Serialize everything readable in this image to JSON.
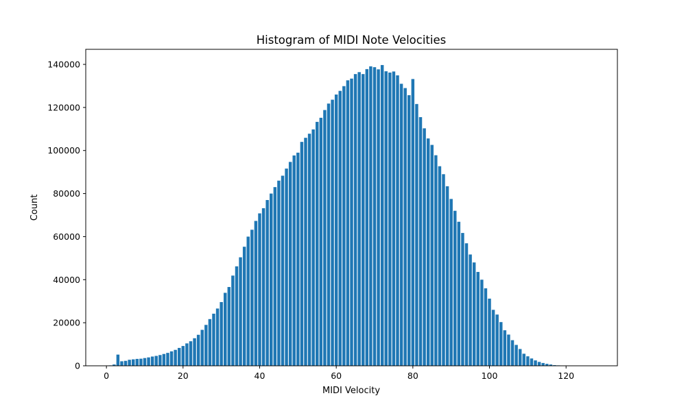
{
  "chart_data": {
    "type": "bar",
    "title": "Histogram of MIDI Note Velocities",
    "xlabel": "MIDI Velocity",
    "ylabel": "Count",
    "xlim": [
      -5.4,
      133.4
    ],
    "ylim": [
      0,
      147000
    ],
    "xticks": [
      0,
      20,
      40,
      60,
      80,
      100,
      120
    ],
    "yticks": [
      0,
      20000,
      40000,
      60000,
      80000,
      100000,
      120000,
      140000
    ],
    "bar_color": "#1f77b4",
    "grid": false,
    "x": [
      0,
      1,
      2,
      3,
      4,
      5,
      6,
      7,
      8,
      9,
      10,
      11,
      12,
      13,
      14,
      15,
      16,
      17,
      18,
      19,
      20,
      21,
      22,
      23,
      24,
      25,
      26,
      27,
      28,
      29,
      30,
      31,
      32,
      33,
      34,
      35,
      36,
      37,
      38,
      39,
      40,
      41,
      42,
      43,
      44,
      45,
      46,
      47,
      48,
      49,
      50,
      51,
      52,
      53,
      54,
      55,
      56,
      57,
      58,
      59,
      60,
      61,
      62,
      63,
      64,
      65,
      66,
      67,
      68,
      69,
      70,
      71,
      72,
      73,
      74,
      75,
      76,
      77,
      78,
      79,
      80,
      81,
      82,
      83,
      84,
      85,
      86,
      87,
      88,
      89,
      90,
      91,
      92,
      93,
      94,
      95,
      96,
      97,
      98,
      99,
      100,
      101,
      102,
      103,
      104,
      105,
      106,
      107,
      108,
      109,
      110,
      111,
      112,
      113,
      114,
      115,
      116,
      117,
      118,
      119,
      120,
      121,
      122,
      123,
      124,
      125,
      126,
      127
    ],
    "values": [
      100,
      200,
      600,
      5200,
      2100,
      2300,
      2800,
      3000,
      3200,
      3300,
      3600,
      3900,
      4300,
      4600,
      5000,
      5500,
      6000,
      6700,
      7400,
      8300,
      9200,
      10400,
      11400,
      12800,
      14400,
      16700,
      19000,
      21700,
      24200,
      26600,
      29600,
      33900,
      36600,
      41900,
      46200,
      50400,
      55300,
      60000,
      63200,
      67300,
      70800,
      73200,
      77000,
      80000,
      83000,
      86000,
      88300,
      91600,
      94700,
      97700,
      99000,
      104000,
      105900,
      107800,
      109800,
      113300,
      115200,
      118800,
      121800,
      123600,
      126000,
      127700,
      129900,
      132600,
      133400,
      135500,
      136400,
      135500,
      137800,
      139100,
      138700,
      137700,
      139700,
      136800,
      136200,
      136700,
      134900,
      131000,
      129000,
      125700,
      133200,
      121600,
      115500,
      110300,
      105600,
      102600,
      97800,
      92700,
      89000,
      83400,
      77500,
      72000,
      66900,
      61700,
      56900,
      51700,
      48000,
      43600,
      40000,
      36000,
      31200,
      26000,
      23800,
      20300,
      16500,
      14500,
      11900,
      9700,
      7800,
      5600,
      4400,
      3400,
      2500,
      1800,
      1300,
      900,
      600,
      300,
      200,
      100,
      0,
      0,
      0,
      0,
      0,
      0,
      0,
      0
    ]
  }
}
